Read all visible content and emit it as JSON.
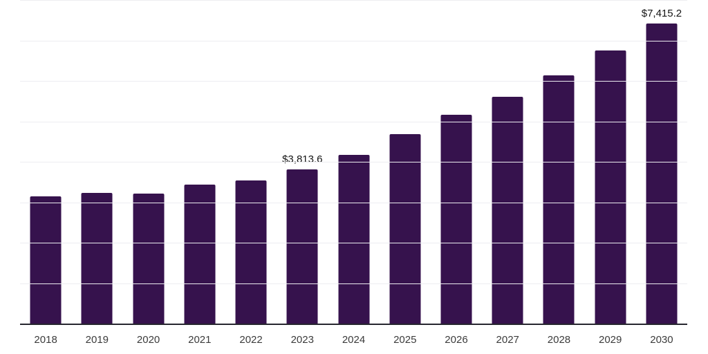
{
  "chart_data": {
    "type": "bar",
    "title": "",
    "xlabel": "",
    "ylabel": "",
    "categories": [
      "2018",
      "2019",
      "2020",
      "2021",
      "2022",
      "2023",
      "2024",
      "2025",
      "2026",
      "2027",
      "2028",
      "2029",
      "2030"
    ],
    "values": [
      3145,
      3230,
      3215,
      3435,
      3540,
      3813.6,
      4170,
      4685,
      5160,
      5605,
      6135,
      6750,
      7415.2
    ],
    "data_labels": [
      null,
      null,
      null,
      null,
      null,
      "$3,813.6",
      null,
      null,
      null,
      null,
      null,
      null,
      "$7,415.2"
    ],
    "ylim": [
      0,
      8000
    ],
    "gridline_step": 1000,
    "grid": true,
    "legend": "none",
    "bar_color": "#36124d",
    "gridline_color": "#ededf1",
    "axis_line_color": "#26262e",
    "tick_label_color": "#3b3b3b",
    "data_label_color": "#141414"
  }
}
